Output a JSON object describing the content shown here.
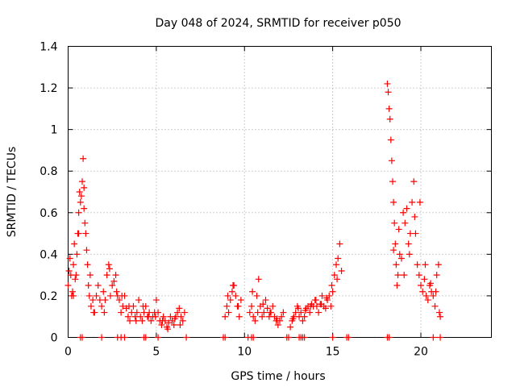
{
  "chart_data": {
    "type": "scatter",
    "title": "Day 048 of 2024, SRMTID for receiver p050",
    "xlabel": "GPS time / hours",
    "ylabel": "SRMTID / TECUs",
    "xlim": [
      0,
      24
    ],
    "ylim": [
      0,
      1.4
    ],
    "x_ticks": [
      0,
      5,
      10,
      15,
      20
    ],
    "x_tick_labels": [
      "0",
      "5",
      "10",
      "15",
      "20"
    ],
    "y_ticks": [
      0,
      0.2,
      0.4,
      0.6,
      0.8,
      1.0,
      1.2,
      1.4
    ],
    "y_tick_labels": [
      "0",
      "0.2",
      "0.4",
      "0.6",
      "0.8",
      "1",
      "1.2",
      "1.4"
    ],
    "grid": true,
    "marker": "+",
    "color": "#ff0000",
    "series": [
      {
        "name": "SRMTID",
        "x": [
          0.0,
          0.1,
          0.15,
          0.2,
          0.25,
          0.3,
          0.35,
          0.4,
          0.45,
          0.5,
          0.55,
          0.6,
          0.65,
          0.7,
          0.75,
          0.8,
          0.85,
          0.9,
          0.95,
          1.0,
          1.05,
          1.1,
          1.15,
          1.2,
          1.3,
          1.4,
          1.5,
          1.6,
          1.7,
          1.8,
          1.9,
          2.0,
          2.1,
          2.2,
          2.3,
          2.4,
          2.5,
          2.6,
          2.7,
          2.8,
          2.9,
          3.0,
          3.1,
          3.2,
          3.3,
          3.4,
          3.5,
          3.6,
          3.7,
          3.8,
          3.9,
          4.0,
          4.1,
          4.2,
          4.3,
          4.4,
          4.5,
          4.6,
          4.7,
          4.8,
          4.9,
          5.0,
          5.1,
          5.2,
          5.3,
          5.4,
          5.5,
          5.6,
          5.7,
          5.8,
          5.9,
          6.0,
          6.1,
          6.2,
          6.3,
          6.4,
          6.5,
          6.6,
          8.9,
          9.0,
          9.1,
          9.2,
          9.3,
          9.4,
          9.5,
          9.6,
          9.7,
          9.8,
          10.3,
          10.4,
          10.5,
          10.6,
          10.7,
          10.8,
          10.9,
          11.0,
          11.1,
          11.2,
          11.3,
          11.4,
          11.5,
          11.6,
          11.7,
          11.8,
          11.9,
          12.0,
          12.1,
          12.2,
          12.6,
          12.7,
          12.8,
          12.9,
          13.0,
          13.1,
          13.2,
          13.3,
          13.4,
          13.5,
          13.6,
          13.7,
          13.8,
          13.9,
          14.0,
          14.1,
          14.2,
          14.3,
          14.4,
          14.5,
          14.6,
          14.7,
          14.8,
          14.9,
          15.0,
          15.1,
          15.2,
          15.3,
          15.4,
          15.5,
          18.1,
          18.15,
          18.2,
          18.25,
          18.3,
          18.35,
          18.4,
          18.45,
          18.5,
          18.55,
          18.6,
          18.65,
          18.7,
          18.8,
          18.9,
          19.0,
          19.1,
          19.2,
          19.3,
          19.4,
          19.5,
          19.6,
          19.7,
          19.8,
          19.9,
          20.0,
          20.1,
          20.2,
          20.3,
          20.4,
          20.5,
          20.6,
          20.7,
          20.8,
          20.9,
          21.0,
          21.05,
          21.1,
          0.05,
          0.3,
          0.6,
          0.9,
          1.25,
          1.45,
          2.05,
          2.35,
          2.75,
          3.05,
          3.45,
          3.85,
          4.25,
          4.55,
          4.95,
          5.35,
          5.65,
          6.05,
          6.35,
          9.05,
          9.35,
          9.65,
          10.45,
          10.75,
          11.05,
          11.45,
          11.85,
          12.75,
          13.05,
          13.45,
          13.75,
          14.05,
          14.35,
          14.65,
          14.95,
          15.25,
          18.45,
          18.75,
          19.05,
          19.35,
          19.65,
          19.95,
          20.25,
          20.55,
          20.85
        ],
        "y": [
          0.25,
          0.38,
          0.3,
          0.2,
          0.22,
          0.35,
          0.45,
          0.28,
          0.3,
          0.4,
          0.5,
          0.6,
          0.7,
          0.65,
          0.68,
          0.75,
          0.86,
          0.62,
          0.55,
          0.5,
          0.42,
          0.35,
          0.25,
          0.2,
          0.15,
          0.18,
          0.12,
          0.2,
          0.25,
          0.18,
          0.15,
          0.22,
          0.18,
          0.3,
          0.35,
          0.2,
          0.25,
          0.27,
          0.3,
          0.2,
          0.18,
          0.12,
          0.15,
          0.2,
          0.14,
          0.1,
          0.08,
          0.12,
          0.15,
          0.1,
          0.12,
          0.18,
          0.1,
          0.08,
          0.12,
          0.15,
          0.1,
          0.12,
          0.08,
          0.1,
          0.12,
          0.18,
          0.12,
          0.08,
          0.06,
          0.1,
          0.08,
          0.05,
          0.07,
          0.1,
          0.08,
          0.06,
          0.1,
          0.12,
          0.14,
          0.1,
          0.08,
          0.12,
          0.1,
          0.15,
          0.12,
          0.18,
          0.22,
          0.25,
          0.2,
          0.15,
          0.1,
          0.18,
          0.12,
          0.15,
          0.1,
          0.08,
          0.2,
          0.28,
          0.15,
          0.1,
          0.12,
          0.18,
          0.14,
          0.1,
          0.12,
          0.15,
          0.1,
          0.08,
          0.06,
          0.08,
          0.1,
          0.12,
          0.05,
          0.08,
          0.1,
          0.12,
          0.15,
          0.1,
          0.12,
          0.08,
          0.1,
          0.14,
          0.15,
          0.12,
          0.16,
          0.15,
          0.18,
          0.15,
          0.12,
          0.16,
          0.2,
          0.15,
          0.14,
          0.18,
          0.2,
          0.15,
          0.22,
          0.3,
          0.35,
          0.38,
          0.45,
          0.32,
          1.22,
          1.18,
          1.1,
          1.05,
          0.95,
          0.85,
          0.75,
          0.65,
          0.55,
          0.45,
          0.35,
          0.25,
          0.3,
          0.4,
          0.38,
          0.6,
          0.55,
          0.62,
          0.45,
          0.5,
          0.65,
          0.75,
          0.5,
          0.35,
          0.3,
          0.25,
          0.22,
          0.28,
          0.2,
          0.18,
          0.25,
          0.22,
          0.2,
          0.15,
          0.3,
          0.35,
          0.12,
          0.1,
          0.32,
          0.2,
          0.5,
          0.72,
          0.3,
          0.12,
          0.12,
          0.33,
          0.22,
          0.2,
          0.15,
          0.08,
          0.15,
          0.1,
          0.1,
          0.08,
          0.04,
          0.09,
          0.06,
          0.2,
          0.25,
          0.15,
          0.22,
          0.12,
          0.16,
          0.12,
          0.09,
          0.09,
          0.14,
          0.13,
          0.15,
          0.18,
          0.16,
          0.19,
          0.25,
          0.28,
          0.42,
          0.52,
          0.3,
          0.4,
          0.58,
          0.65,
          0.35,
          0.26,
          0.22
        ],
        "zero_points_x": [
          0.7,
          0.8,
          1.9,
          2.8,
          3.0,
          3.2,
          4.3,
          4.4,
          5.1,
          6.7,
          8.8,
          8.9,
          10.2,
          10.4,
          10.5,
          12.4,
          12.5,
          13.1,
          13.2,
          13.3,
          13.4,
          15.0,
          15.8,
          15.9,
          18.1,
          18.2,
          20.7,
          21.1
        ]
      }
    ]
  }
}
